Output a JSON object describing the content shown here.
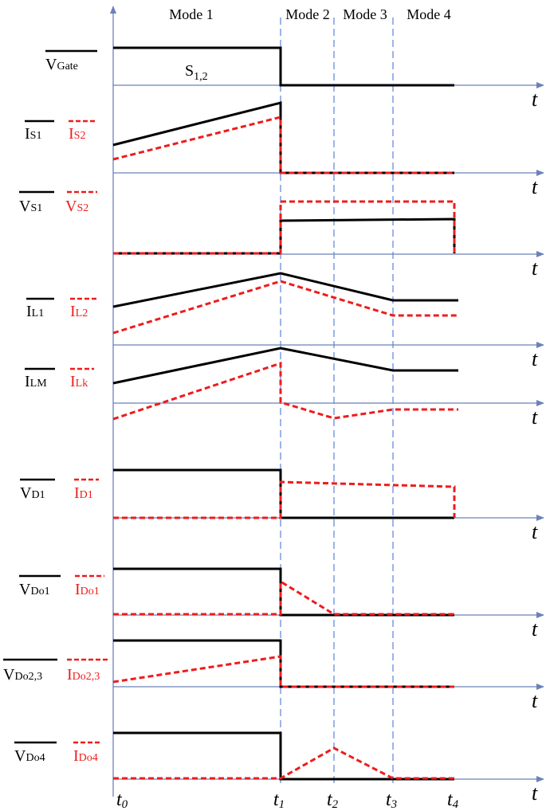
{
  "modes": [
    "Mode 1",
    "Mode 2",
    "Mode 3",
    "Mode 4"
  ],
  "time_axis_symbol": "t",
  "time_marks": [
    {
      "main": "t",
      "sub": "0"
    },
    {
      "main": "t",
      "sub": "1"
    },
    {
      "main": "t",
      "sub": "2"
    },
    {
      "main": "t",
      "sub": "3"
    },
    {
      "main": "t",
      "sub": "4"
    }
  ],
  "switch_label": {
    "main": "S",
    "sub": "1,2"
  },
  "colors": {
    "solid": "#000000",
    "dashed": "#ee1c1c",
    "axis": "#6b82b8",
    "mode_line": "#5a84d6"
  },
  "panels": [
    {
      "solid": {
        "main": "V",
        "sub": "Gate"
      }
    },
    {
      "solid": {
        "main": "I",
        "sub": "S1"
      },
      "dashed": {
        "main": "I",
        "sub": "S2"
      }
    },
    {
      "solid": {
        "main": "V",
        "sub": "S1"
      },
      "dashed": {
        "main": "V",
        "sub": "S2"
      }
    },
    {
      "solid": {
        "main": "I",
        "sub": "L1"
      },
      "dashed": {
        "main": "I",
        "sub": "L2"
      }
    },
    {
      "solid": {
        "main": "I",
        "sub": "LM"
      },
      "dashed": {
        "main": "I",
        "sub": "Lk"
      }
    },
    {
      "solid": {
        "main": "V",
        "sub": "D1"
      },
      "dashed": {
        "main": "I",
        "sub": "D1"
      }
    },
    {
      "solid": {
        "main": "V",
        "sub": "Do1"
      },
      "dashed": {
        "main": "I",
        "sub": "Do1"
      }
    },
    {
      "solid": {
        "main": "V",
        "sub": "Do2,3"
      },
      "dashed": {
        "main": "I",
        "sub": "Do2,3"
      }
    },
    {
      "solid": {
        "main": "V",
        "sub": "Do4"
      },
      "dashed": {
        "main": "I",
        "sub": "Do4"
      }
    }
  ]
}
